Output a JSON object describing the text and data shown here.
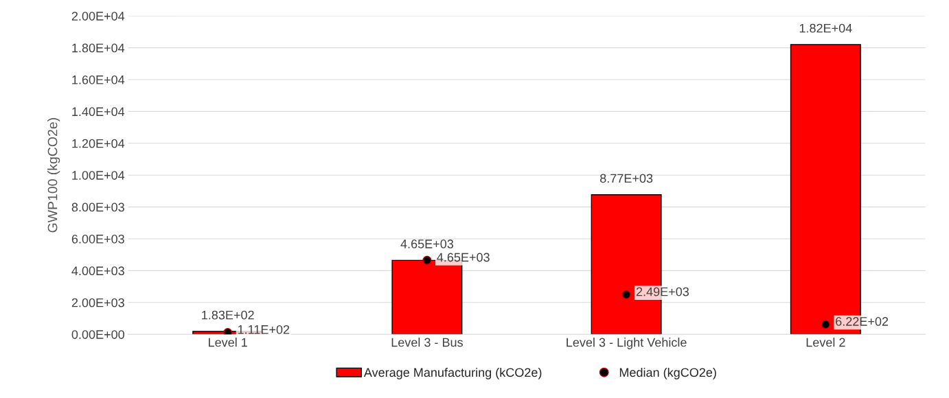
{
  "chart_data": {
    "type": "bar",
    "ylabel": "GWP100 (kgCO2e)",
    "categories": [
      "Level 1",
      "Level 3 - Bus",
      "Level 3 - Light Vehicle",
      "Level 2"
    ],
    "series": [
      {
        "name": "Average Manufacturing (kCO2e)",
        "color": "#ff0000",
        "values": [
          183,
          4650,
          8770,
          18200
        ],
        "value_labels": [
          "1.83E+02",
          "4.65E+03",
          "8.77E+03",
          "1.82E+04"
        ]
      },
      {
        "name": "Median (kgCO2e)",
        "type": "scatter",
        "color": "#000000",
        "values": [
          111,
          4650,
          2490,
          622
        ],
        "value_labels": [
          "1.11E+02",
          "4.65E+03",
          "2.49E+03",
          "6.22E+02"
        ]
      }
    ],
    "ylim": [
      0,
      20000
    ],
    "yticks": [
      {
        "value": 0,
        "label": "0.00E+00"
      },
      {
        "value": 2000,
        "label": "2.00E+03"
      },
      {
        "value": 4000,
        "label": "4.00E+03"
      },
      {
        "value": 6000,
        "label": "6.00E+03"
      },
      {
        "value": 8000,
        "label": "8.00E+03"
      },
      {
        "value": 10000,
        "label": "1.00E+04"
      },
      {
        "value": 12000,
        "label": "1.20E+04"
      },
      {
        "value": 14000,
        "label": "1.40E+04"
      },
      {
        "value": 16000,
        "label": "1.60E+04"
      },
      {
        "value": 18000,
        "label": "1.80E+04"
      },
      {
        "value": 20000,
        "label": "2.00E+04"
      }
    ],
    "grid": "y",
    "legend": "bottom",
    "marker": "circle"
  }
}
